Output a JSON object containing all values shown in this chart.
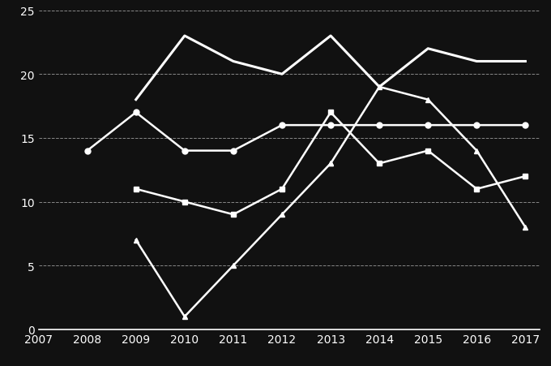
{
  "background_color": "#111111",
  "text_color": "#ffffff",
  "grid_color": "#ffffff",
  "line_circle": {
    "x": [
      2008,
      2009,
      2010,
      2011,
      2012,
      2013,
      2014,
      2015,
      2016,
      2017
    ],
    "y": [
      14,
      17,
      14,
      14,
      16,
      16,
      16,
      16,
      16,
      16
    ],
    "color": "#ffffff",
    "marker": "o",
    "markersize": 5,
    "linewidth": 1.8
  },
  "line_plain": {
    "x": [
      2009,
      2010,
      2011,
      2012,
      2013,
      2014,
      2015,
      2016,
      2017
    ],
    "y": [
      18,
      23,
      21,
      20,
      23,
      19,
      22,
      21,
      21
    ],
    "color": "#ffffff",
    "marker": "None",
    "linewidth": 2.2
  },
  "line_square": {
    "x": [
      2009,
      2010,
      2011,
      2012,
      2013,
      2014,
      2015,
      2016,
      2017
    ],
    "y": [
      11,
      10,
      9,
      11,
      17,
      13,
      14,
      11,
      12
    ],
    "color": "#ffffff",
    "marker": "s",
    "markersize": 5,
    "linewidth": 1.8
  },
  "line_triangle": {
    "x1": [
      2009,
      2010,
      2011,
      2012,
      2013
    ],
    "y1": [
      7,
      1,
      5,
      9,
      13
    ],
    "x2": [
      2013,
      2014,
      2015,
      2016,
      2017
    ],
    "y2": [
      13,
      19,
      18,
      14,
      8
    ],
    "color": "#ffffff",
    "marker": "^",
    "markersize": 5,
    "linewidth": 1.8
  },
  "xlim": [
    2007,
    2017.3
  ],
  "ylim": [
    0,
    25
  ],
  "yticks": [
    0,
    5,
    10,
    15,
    20,
    25
  ],
  "xticks": [
    2007,
    2008,
    2009,
    2010,
    2011,
    2012,
    2013,
    2014,
    2015,
    2016,
    2017
  ],
  "tick_fontsize": 10
}
